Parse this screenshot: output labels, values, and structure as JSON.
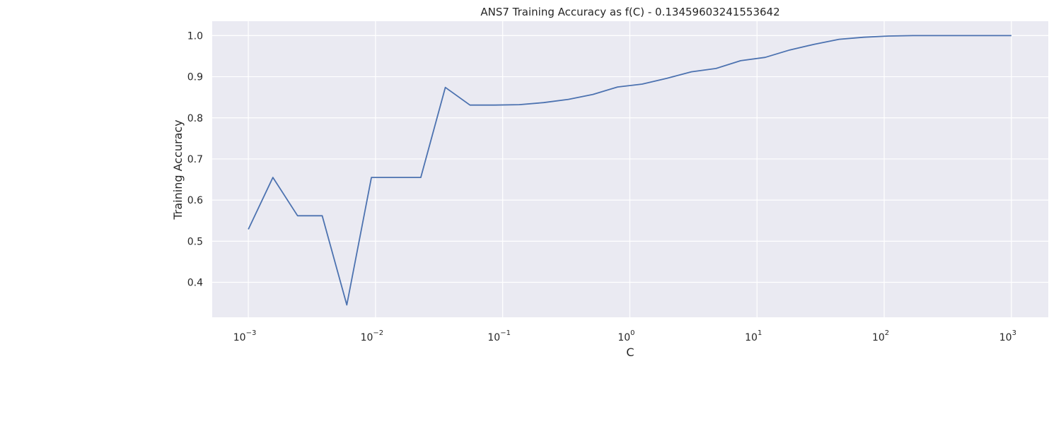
{
  "chart_data": {
    "type": "line",
    "title": "ANS7 Training Accuracy as f(C) - 0.13459603241553642",
    "xlabel": "C",
    "ylabel": "Training Accuracy",
    "xscale": "log",
    "xlim": [
      0.00052,
      1950
    ],
    "ylim": [
      0.315,
      1.035
    ],
    "grid": true,
    "colors": {
      "background": "#eaeaf2",
      "grid": "#ffffff",
      "line": "#4c72b0",
      "text": "#262626"
    },
    "x_ticks": [
      {
        "base": "10",
        "exp": "−3",
        "value": 0.001
      },
      {
        "base": "10",
        "exp": "−2",
        "value": 0.01
      },
      {
        "base": "10",
        "exp": "−1",
        "value": 0.1
      },
      {
        "base": "10",
        "exp": "0",
        "value": 1
      },
      {
        "base": "10",
        "exp": "1",
        "value": 10
      },
      {
        "base": "10",
        "exp": "2",
        "value": 100
      },
      {
        "base": "10",
        "exp": "3",
        "value": 1000
      }
    ],
    "y_ticks": [
      "0.4",
      "0.5",
      "0.6",
      "0.7",
      "0.8",
      "0.9",
      "1.0"
    ],
    "series": [
      {
        "x": [
          0.001,
          0.00156,
          0.00244,
          0.00381,
          0.00595,
          0.00929,
          0.0145,
          0.0227,
          0.0354,
          0.0553,
          0.0863,
          0.135,
          0.21,
          0.329,
          0.513,
          0.801,
          1.25,
          1.95,
          3.05,
          4.76,
          7.43,
          11.6,
          18.1,
          28.3,
          44.2,
          69.0,
          108,
          168,
          263,
          410,
          641,
          1000
        ],
        "y": [
          0.529,
          0.655,
          0.562,
          0.562,
          0.345,
          0.655,
          0.655,
          0.655,
          0.874,
          0.831,
          0.831,
          0.832,
          0.837,
          0.845,
          0.857,
          0.875,
          0.882,
          0.896,
          0.912,
          0.92,
          0.939,
          0.947,
          0.965,
          0.979,
          0.991,
          0.996,
          0.999,
          1.0,
          1.0,
          1.0,
          1.0,
          1.0
        ]
      }
    ]
  }
}
